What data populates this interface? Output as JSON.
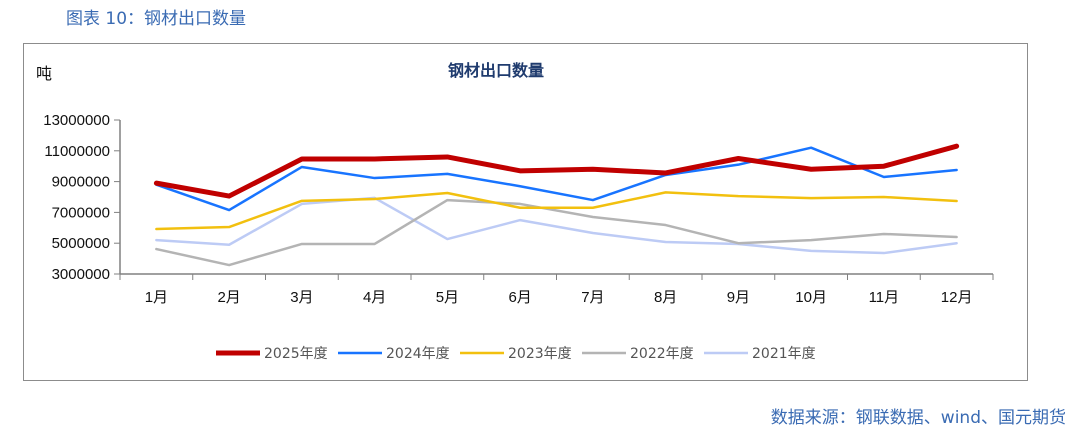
{
  "figure_title": "图表 10：钢材出口数量",
  "source": "数据来源：钢联数据、wind、国元期货",
  "chart_data": {
    "type": "line",
    "title": "钢材出口数量",
    "ylabel": "吨",
    "xlabel": "",
    "ylim": [
      3000000,
      13000000
    ],
    "yticks": [
      "13000000",
      "11000000",
      "9000000",
      "7000000",
      "5000000",
      "3000000"
    ],
    "ytick_values": [
      13000000,
      11000000,
      9000000,
      7000000,
      5000000,
      3000000
    ],
    "categories": [
      "1月",
      "2月",
      "3月",
      "4月",
      "5月",
      "6月",
      "7月",
      "8月",
      "9月",
      "10月",
      "11月",
      "12月"
    ],
    "legend_position": "bottom",
    "series": [
      {
        "name": "2025年度",
        "color": "#c00000",
        "width": 5,
        "values": [
          8900000,
          8060000,
          10470000,
          10470000,
          10600000,
          9700000,
          9800000,
          9560000,
          10500000,
          9800000,
          10000000,
          11300000
        ]
      },
      {
        "name": "2024年度",
        "color": "#1874ff",
        "width": 2.5,
        "values": [
          8800000,
          7150000,
          9950000,
          9230000,
          9500000,
          8700000,
          7800000,
          9430000,
          10100000,
          11200000,
          9300000,
          9750000
        ]
      },
      {
        "name": "2023年度",
        "color": "#f2c00f",
        "width": 2.5,
        "values": [
          5920000,
          6050000,
          7750000,
          7870000,
          8260000,
          7300000,
          7300000,
          8300000,
          8060000,
          7930000,
          8000000,
          7740000
        ]
      },
      {
        "name": "2022年度",
        "color": "#b4b4b4",
        "width": 2.5,
        "values": [
          4620000,
          3580000,
          4950000,
          4950000,
          7800000,
          7550000,
          6700000,
          6180000,
          5000000,
          5200000,
          5600000,
          5400000
        ]
      },
      {
        "name": "2021年度",
        "color": "#bdcbf5",
        "width": 2.5,
        "values": [
          5200000,
          4900000,
          7550000,
          7940000,
          5270000,
          6500000,
          5660000,
          5080000,
          4950000,
          4500000,
          4360000,
          5000000
        ]
      }
    ]
  }
}
